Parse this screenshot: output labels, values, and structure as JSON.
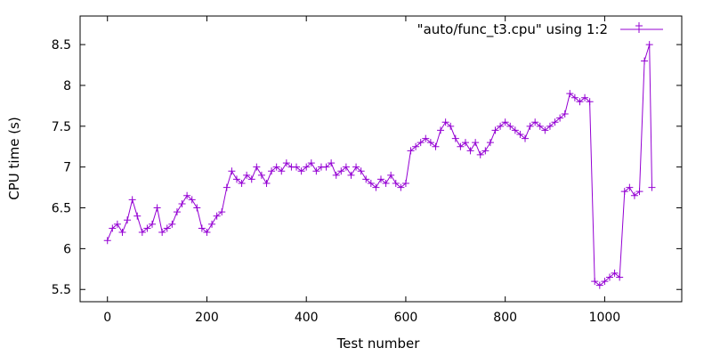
{
  "chart_data": {
    "type": "line",
    "title": "",
    "xlabel": "Test number",
    "ylabel": "CPU time (s)",
    "xlim": [
      -55,
      1155
    ],
    "ylim": [
      5.35,
      8.85
    ],
    "x_ticks": [
      0,
      200,
      400,
      600,
      800,
      1000
    ],
    "x_tick_labels": [
      "0",
      "200",
      "400",
      "600",
      "800",
      "1000"
    ],
    "y_ticks": [
      5.5,
      6,
      6.5,
      7,
      7.5,
      8,
      8.5
    ],
    "y_tick_labels": [
      "5.5",
      "6",
      "6.5",
      "7",
      "7.5",
      "8",
      "8.5"
    ],
    "grid": false,
    "legend_position": "top-right",
    "marker": "plus",
    "series": [
      {
        "name": "\"auto/func_t3.cpu\" using 1:2",
        "color": "#9400d3",
        "x": [
          0,
          10,
          20,
          30,
          40,
          50,
          60,
          70,
          80,
          90,
          100,
          110,
          120,
          130,
          140,
          150,
          160,
          170,
          180,
          190,
          200,
          210,
          220,
          230,
          240,
          250,
          260,
          270,
          280,
          290,
          300,
          310,
          320,
          330,
          340,
          350,
          360,
          370,
          380,
          390,
          400,
          410,
          420,
          430,
          440,
          450,
          460,
          470,
          480,
          490,
          500,
          510,
          520,
          530,
          540,
          550,
          560,
          570,
          580,
          590,
          600,
          610,
          620,
          630,
          640,
          650,
          660,
          670,
          680,
          690,
          700,
          710,
          720,
          730,
          740,
          750,
          760,
          770,
          780,
          790,
          800,
          810,
          820,
          830,
          840,
          850,
          860,
          870,
          880,
          890,
          900,
          910,
          920,
          930,
          940,
          950,
          960,
          970,
          980,
          990,
          1000,
          1010,
          1020,
          1030,
          1040,
          1050,
          1060,
          1070,
          1080,
          1090,
          1095
        ],
        "y": [
          6.1,
          6.25,
          6.3,
          6.2,
          6.35,
          6.6,
          6.4,
          6.2,
          6.25,
          6.3,
          6.5,
          6.2,
          6.25,
          6.3,
          6.45,
          6.55,
          6.65,
          6.6,
          6.5,
          6.25,
          6.2,
          6.3,
          6.4,
          6.45,
          6.75,
          6.95,
          6.85,
          6.8,
          6.9,
          6.85,
          7.0,
          6.9,
          6.8,
          6.95,
          7.0,
          6.95,
          7.05,
          7.0,
          7.0,
          6.95,
          7.0,
          7.05,
          6.95,
          7.0,
          7.0,
          7.05,
          6.9,
          6.95,
          7.0,
          6.9,
          7.0,
          6.95,
          6.85,
          6.8,
          6.75,
          6.85,
          6.8,
          6.9,
          6.8,
          6.75,
          6.8,
          7.2,
          7.25,
          7.3,
          7.35,
          7.3,
          7.25,
          7.45,
          7.55,
          7.5,
          7.35,
          7.25,
          7.3,
          7.2,
          7.3,
          7.15,
          7.2,
          7.3,
          7.45,
          7.5,
          7.55,
          7.5,
          7.45,
          7.4,
          7.35,
          7.5,
          7.55,
          7.5,
          7.45,
          7.5,
          7.55,
          7.6,
          7.65,
          7.9,
          7.85,
          7.8,
          7.85,
          7.8,
          5.6,
          5.55,
          5.6,
          5.65,
          5.7,
          5.65,
          6.7,
          6.75,
          6.65,
          6.7,
          8.3,
          8.5,
          6.75
        ]
      }
    ]
  }
}
